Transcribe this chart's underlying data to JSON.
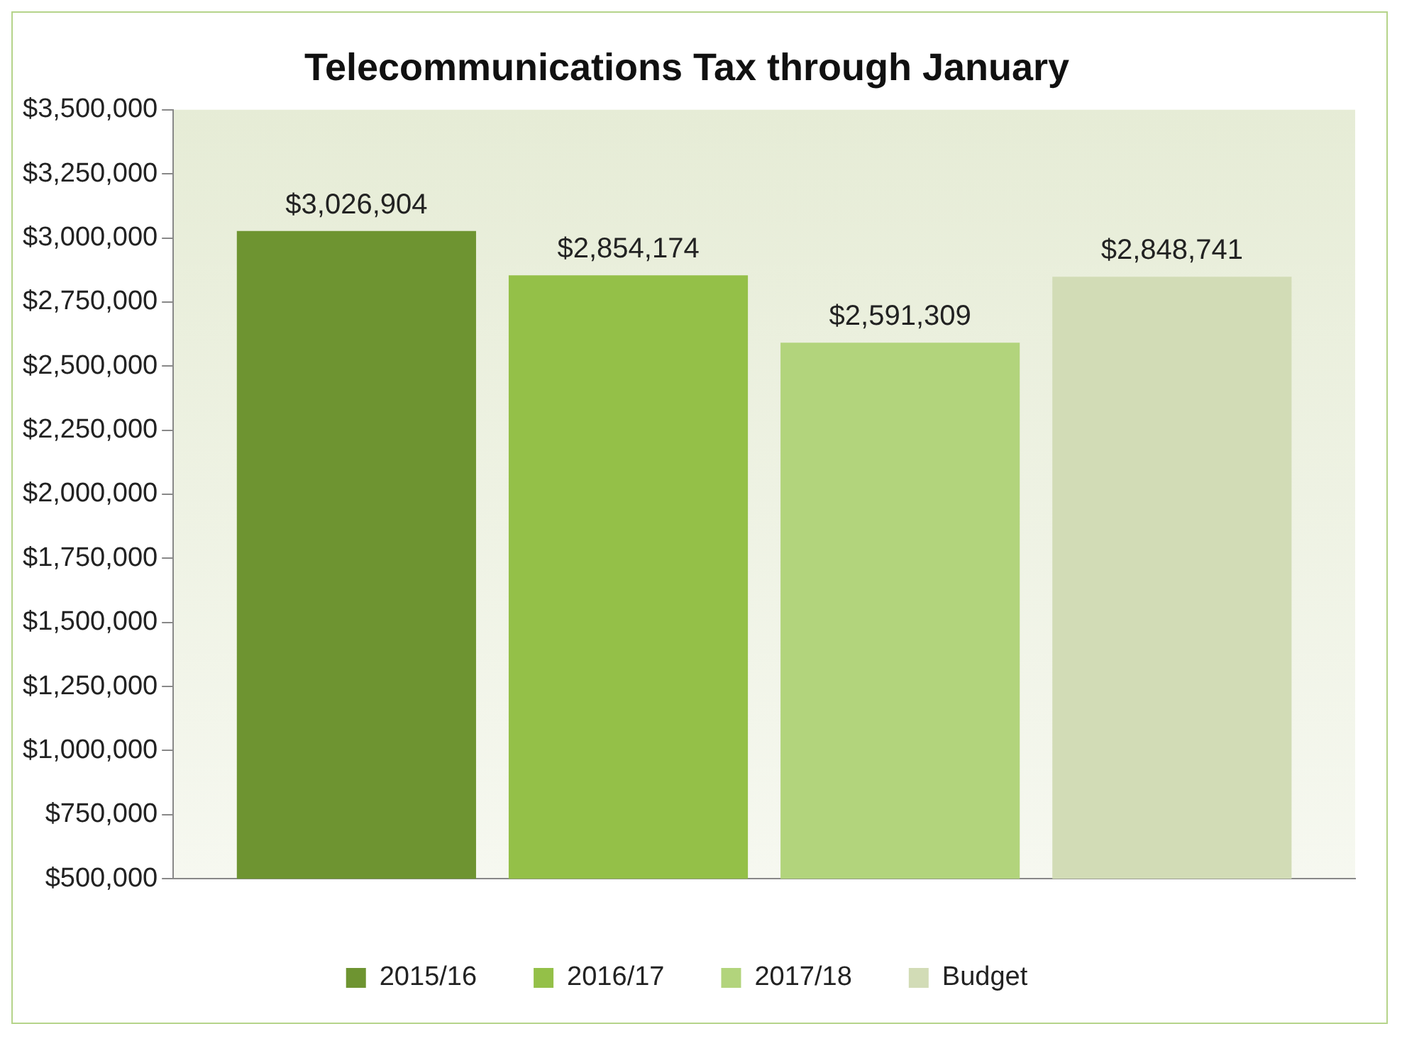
{
  "chart_data": {
    "type": "bar",
    "title": "Telecommunications Tax through January",
    "categories": [
      null
    ],
    "series": [
      {
        "name": "2015/16",
        "color": "#6e9431",
        "values": [
          3026904
        ],
        "value_labels": [
          "$3,026,904"
        ]
      },
      {
        "name": "2016/17",
        "color": "#94c048",
        "values": [
          2854174
        ],
        "value_labels": [
          "$2,854,174"
        ]
      },
      {
        "name": "2017/18",
        "color": "#b2d47c",
        "values": [
          2591309
        ],
        "value_labels": [
          "$2,591,309"
        ]
      },
      {
        "name": "Budget",
        "color": "#d2dcb6",
        "values": [
          2848741
        ],
        "value_labels": [
          "$2,848,741"
        ]
      }
    ],
    "ylim": [
      500000,
      3500000
    ],
    "yticks": [
      {
        "value": 500000,
        "label": "$500,000"
      },
      {
        "value": 750000,
        "label": "$750,000"
      },
      {
        "value": 1000000,
        "label": "$1,000,000"
      },
      {
        "value": 1250000,
        "label": "$1,250,000"
      },
      {
        "value": 1500000,
        "label": "$1,500,000"
      },
      {
        "value": 1750000,
        "label": "$1,750,000"
      },
      {
        "value": 2000000,
        "label": "$2,000,000"
      },
      {
        "value": 2250000,
        "label": "$2,250,000"
      },
      {
        "value": 2500000,
        "label": "$2,500,000"
      },
      {
        "value": 2750000,
        "label": "$2,750,000"
      },
      {
        "value": 3000000,
        "label": "$3,000,000"
      },
      {
        "value": 3250000,
        "label": "$3,250,000"
      },
      {
        "value": 3500000,
        "label": "$3,500,000"
      }
    ],
    "grid": false,
    "legend": "bottom"
  }
}
